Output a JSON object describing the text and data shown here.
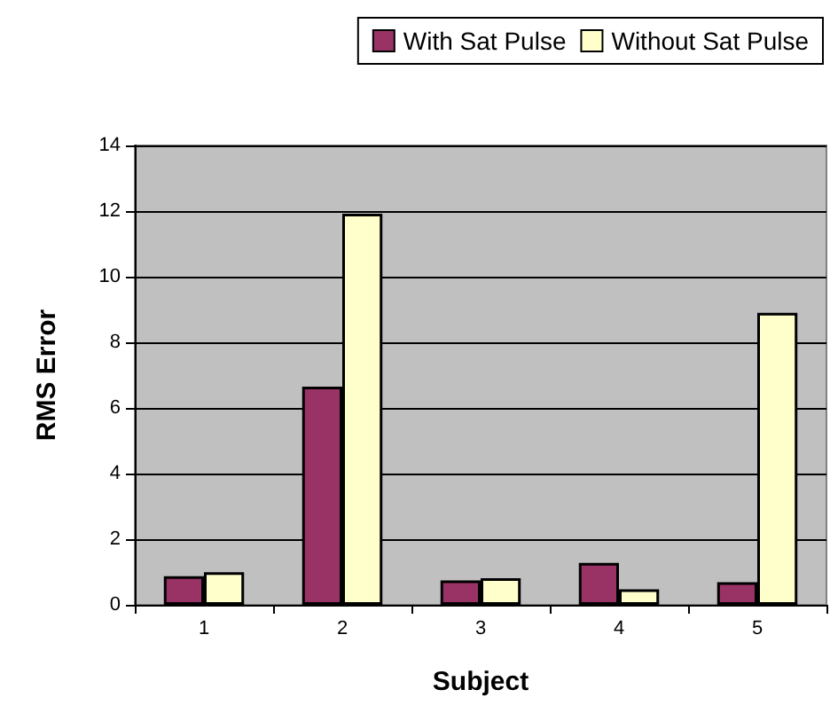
{
  "chart_data": {
    "type": "bar",
    "xlabel": "Subject",
    "ylabel": "RMS Error",
    "categories": [
      "1",
      "2",
      "3",
      "4",
      "5"
    ],
    "series": [
      {
        "name": "With Sat Pulse",
        "color": "#993366",
        "values": [
          0.87,
          6.65,
          0.74,
          1.28,
          0.69
        ]
      },
      {
        "name": "Without Sat Pulse",
        "color": "#ffffcc",
        "values": [
          0.99,
          11.92,
          0.81,
          0.47,
          8.9
        ]
      }
    ],
    "ylim": [
      0,
      14
    ],
    "yticks": [
      0,
      2,
      4,
      6,
      8,
      10,
      12,
      14
    ],
    "grid": "y",
    "legend": "top right"
  }
}
